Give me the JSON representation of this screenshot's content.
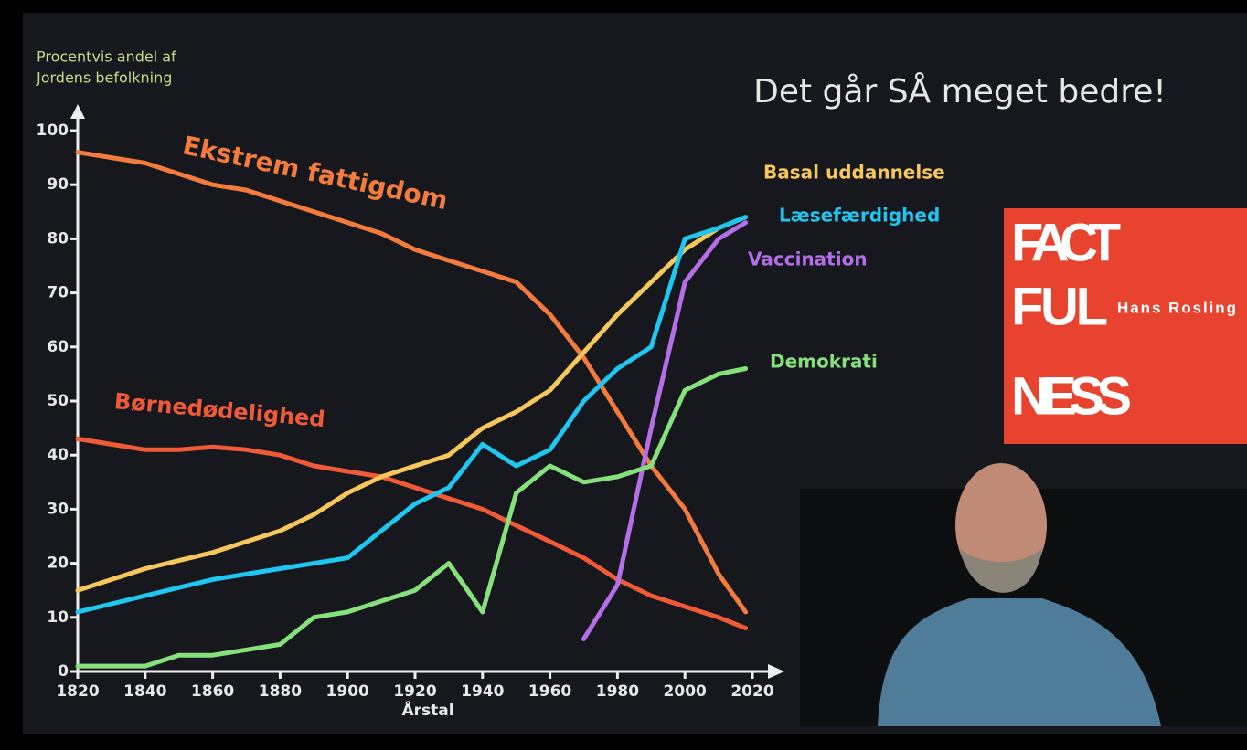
{
  "chart_data": {
    "type": "line",
    "title": "Det går SÅ meget bedre!",
    "ylabel": [
      "Procentvis andel af",
      "Jordens befolkning"
    ],
    "xlabel": "Årstal",
    "x": [
      1820,
      1830,
      1840,
      1850,
      1860,
      1870,
      1880,
      1890,
      1900,
      1910,
      1920,
      1930,
      1940,
      1950,
      1960,
      1970,
      1980,
      1990,
      2000,
      2010,
      2018
    ],
    "series": [
      {
        "name": "Ekstrem fattigdom",
        "color": "#f47b3e",
        "values": [
          96,
          95,
          94,
          92,
          90,
          89,
          87,
          85,
          83,
          81,
          78,
          76,
          74,
          72,
          66,
          58,
          48,
          38,
          30,
          18,
          11
        ]
      },
      {
        "name": "Børnedødelighed",
        "color": "#f05a38",
        "values": [
          43,
          42,
          41,
          41,
          41.5,
          41,
          40,
          38,
          37,
          36,
          34,
          32,
          30,
          27,
          24,
          21,
          17,
          14,
          12,
          10,
          8
        ]
      },
      {
        "name": "Basal uddannelse",
        "color": "#f6c75c",
        "values": [
          15,
          17,
          19,
          20.5,
          22,
          24,
          26,
          29,
          33,
          36,
          38,
          40,
          45,
          48,
          52,
          59,
          66,
          72,
          78,
          82,
          84
        ]
      },
      {
        "name": "Læsefærdighed",
        "color": "#1fc6ef",
        "values": [
          11,
          12.5,
          14,
          15.5,
          17,
          18,
          19,
          20,
          21,
          26,
          31,
          34,
          42,
          38,
          41,
          50,
          56,
          60,
          80,
          82,
          84
        ]
      },
      {
        "name": "Vaccination",
        "color": "#b46ee6",
        "values": [
          null,
          null,
          null,
          null,
          null,
          null,
          null,
          null,
          null,
          null,
          null,
          null,
          null,
          null,
          null,
          6,
          16,
          45,
          72,
          80,
          83
        ]
      },
      {
        "name": "Demokrati",
        "color": "#86e07c",
        "values": [
          1,
          1,
          1,
          3,
          3,
          4,
          5,
          10,
          11,
          13,
          15,
          20,
          11,
          33,
          38,
          35,
          36,
          38,
          52,
          55,
          56
        ]
      }
    ],
    "xlim": [
      1820,
      2020
    ],
    "xticks": [
      1820,
      1840,
      1860,
      1880,
      1900,
      1920,
      1940,
      1960,
      1980,
      2000,
      2020
    ],
    "ylim": [
      0,
      100
    ],
    "yticks": [
      0,
      10,
      20,
      30,
      40,
      50,
      60,
      70,
      80,
      90,
      100
    ]
  },
  "book": {
    "title_lines": [
      "FACT",
      "FUL",
      "NESS"
    ],
    "author": "Hans Rosling"
  }
}
